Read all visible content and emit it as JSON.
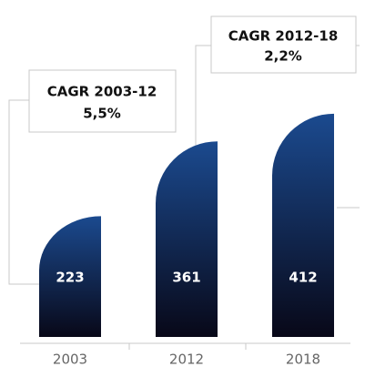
{
  "chart_data": {
    "type": "bar",
    "categories": [
      "2003",
      "2012",
      "2018"
    ],
    "values": [
      223,
      361,
      412
    ],
    "color": "#1b4a8f",
    "annotations": [
      {
        "title": "CAGR 2003-12",
        "value": "5,5%"
      },
      {
        "title": "CAGR 2012-18",
        "value": "2,2%"
      }
    ]
  }
}
